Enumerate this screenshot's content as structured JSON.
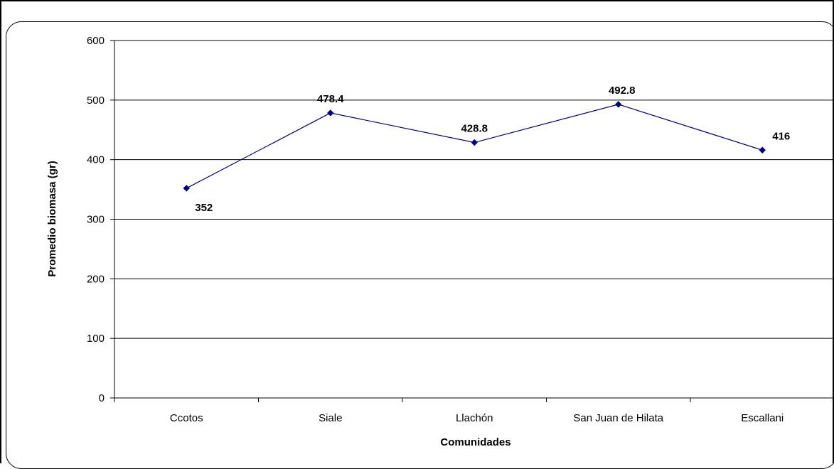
{
  "chart_data": {
    "type": "line",
    "categories": [
      "Ccotos",
      "Siale",
      "Llachón",
      "San Juan de Hilata",
      "Escallani"
    ],
    "values": [
      352,
      478.4,
      428.8,
      492.8,
      416
    ],
    "data_labels": [
      "352",
      "478.4",
      "428.8",
      "492.8",
      "416"
    ],
    "xlabel": "Comunidades",
    "ylabel": "Promedio biomasa (gr)",
    "ylim": [
      0,
      600
    ],
    "yticks": [
      0,
      100,
      200,
      300,
      400,
      500,
      600
    ],
    "grid": "horizontal",
    "line_color": "#00007f",
    "marker": "diamond"
  }
}
